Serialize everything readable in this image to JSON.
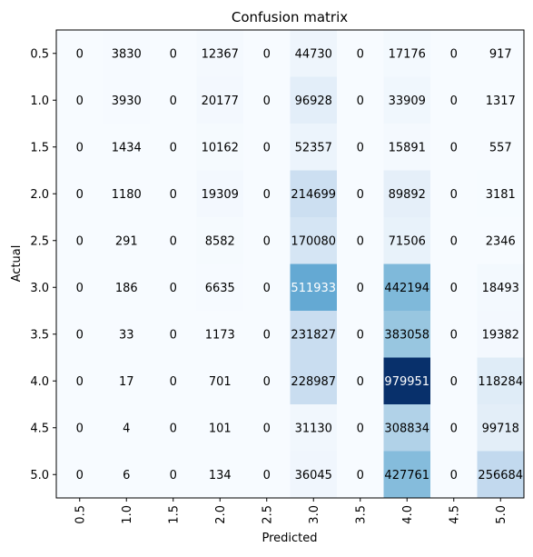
{
  "chart_data": {
    "type": "heatmap",
    "title": "Confusion matrix",
    "xlabel": "Predicted",
    "ylabel": "Actual",
    "x_categories": [
      "0.5",
      "1.0",
      "1.5",
      "2.0",
      "2.5",
      "3.0",
      "3.5",
      "4.0",
      "4.5",
      "5.0"
    ],
    "y_categories": [
      "0.5",
      "1.0",
      "1.5",
      "2.0",
      "2.5",
      "3.0",
      "3.5",
      "4.0",
      "4.5",
      "5.0"
    ],
    "values": [
      [
        0,
        3830,
        0,
        12367,
        0,
        44730,
        0,
        17176,
        0,
        917
      ],
      [
        0,
        3930,
        0,
        20177,
        0,
        96928,
        0,
        33909,
        0,
        1317
      ],
      [
        0,
        1434,
        0,
        10162,
        0,
        52357,
        0,
        15891,
        0,
        557
      ],
      [
        0,
        1180,
        0,
        19309,
        0,
        214699,
        0,
        89892,
        0,
        3181
      ],
      [
        0,
        291,
        0,
        8582,
        0,
        170080,
        0,
        71506,
        0,
        2346
      ],
      [
        0,
        186,
        0,
        6635,
        0,
        511933,
        0,
        442194,
        0,
        18493
      ],
      [
        0,
        33,
        0,
        1173,
        0,
        231827,
        0,
        383058,
        0,
        19382
      ],
      [
        0,
        17,
        0,
        701,
        0,
        228987,
        0,
        979951,
        0,
        118284
      ],
      [
        0,
        4,
        0,
        101,
        0,
        31130,
        0,
        308834,
        0,
        99718
      ],
      [
        0,
        6,
        0,
        134,
        0,
        36045,
        0,
        427761,
        0,
        256684
      ]
    ],
    "colormap": "Blues",
    "color_low": "#f7fbff",
    "color_high": "#08306b",
    "grid": false,
    "colorbar": false
  }
}
